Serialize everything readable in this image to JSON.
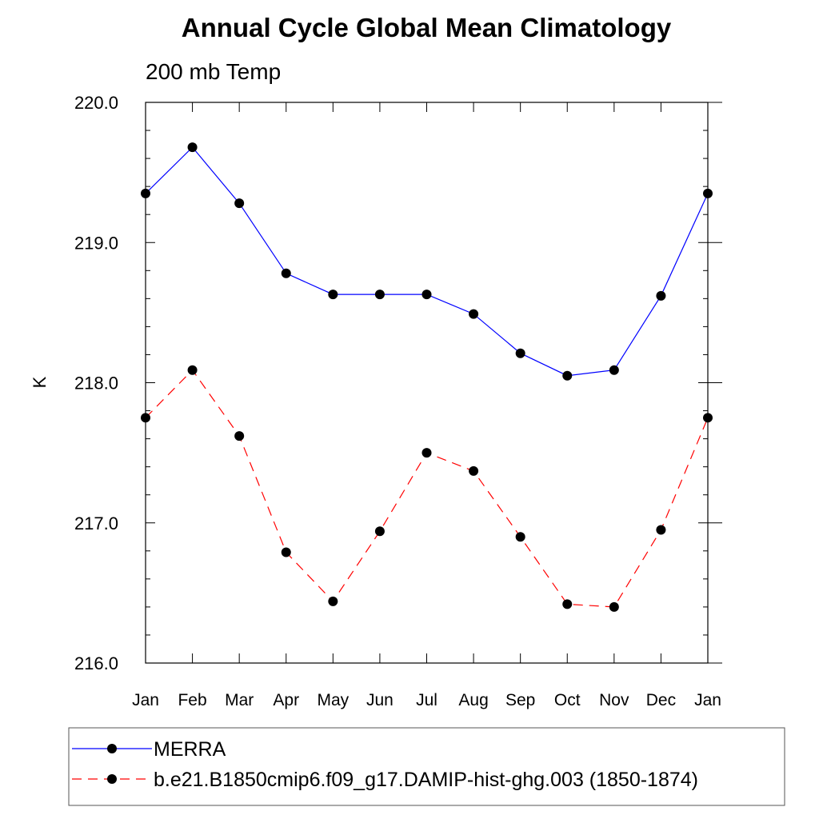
{
  "chart_data": {
    "type": "line",
    "title": "Annual Cycle Global Mean Climatology",
    "subtitle": "200 mb Temp",
    "xlabel": "",
    "ylabel": "K",
    "categories": [
      "Jan",
      "Feb",
      "Mar",
      "Apr",
      "May",
      "Jun",
      "Jul",
      "Aug",
      "Sep",
      "Oct",
      "Nov",
      "Dec",
      "Jan"
    ],
    "ylim": [
      216.0,
      220.0
    ],
    "yticks": [
      "216.0",
      "217.0",
      "218.0",
      "219.0",
      "220.0"
    ],
    "ytick_values": [
      216.0,
      217.0,
      218.0,
      219.0,
      220.0
    ],
    "grid": false,
    "legend_position": "bottom",
    "series": [
      {
        "name": "MERRA",
        "color": "#0000ff",
        "style": "solid",
        "values": [
          219.35,
          219.68,
          219.28,
          218.78,
          218.63,
          218.63,
          218.63,
          218.49,
          218.21,
          218.05,
          218.09,
          218.62,
          219.35
        ]
      },
      {
        "name": "b.e21.B1850cmip6.f09_g17.DAMIP-hist-ghg.003 (1850-1874)",
        "color": "#ff0000",
        "style": "dashed",
        "values": [
          217.75,
          218.09,
          217.62,
          216.79,
          216.44,
          216.94,
          217.5,
          217.37,
          216.9,
          216.42,
          216.4,
          216.95,
          217.75
        ]
      }
    ]
  }
}
